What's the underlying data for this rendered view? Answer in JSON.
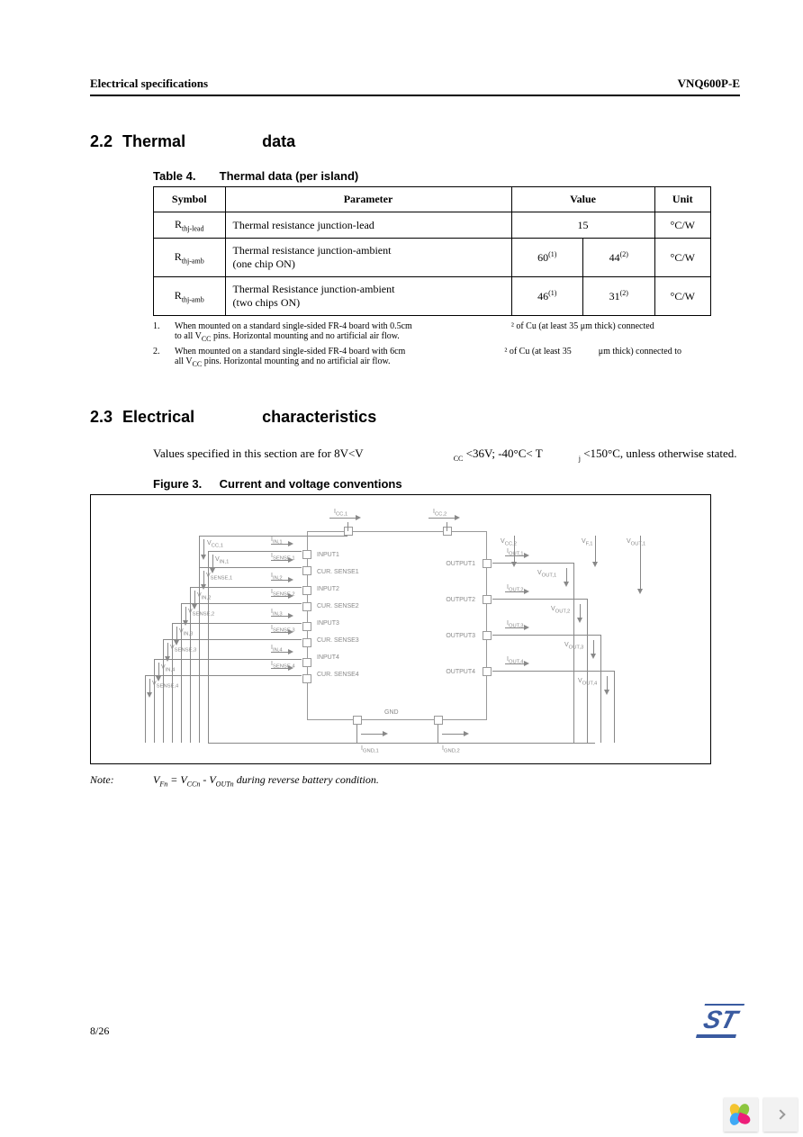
{
  "header": {
    "left": "Electrical specifications",
    "right": "VNQ600P-E"
  },
  "section22": {
    "num": "2.2",
    "title": "Thermal",
    "title2": "data"
  },
  "table4": {
    "caption_num": "Table 4.",
    "caption_title": "Thermal data (per island)",
    "head": {
      "symbol": "Symbol",
      "parameter": "Parameter",
      "value": "Value",
      "unit": "Unit"
    },
    "rows": [
      {
        "sym": "R",
        "sub": "thj-lead",
        "param": "Thermal resistance junction-lead",
        "v1": "15",
        "v2": "",
        "colspan": true,
        "unit": "°C/W"
      },
      {
        "sym": "R",
        "sub": "thj-amb",
        "param": "Thermal resistance junction-ambient",
        "param2": "(one chip ON)",
        "v1": "60",
        "s1": "(1)",
        "v2": "44",
        "s2": "(2)",
        "unit": "°C/W"
      },
      {
        "sym": "R",
        "sub": "thj-amb",
        "param": "Thermal Resistance junction-ambient",
        "param2": "(two chips ON)",
        "v1": "46",
        "s1": "(1)",
        "v2": "31",
        "s2": "(2)",
        "unit": "°C/W"
      }
    ],
    "footnotes": [
      {
        "n": "1.",
        "a": "When mounted on a standard single-sided FR-4 board with 0.5cm",
        "b": "² of Cu (at least 35 μm thick) connected",
        "c": "to all V",
        "d": "CC",
        "e": " pins. Horizontal mounting and no artificial air flow."
      },
      {
        "n": "2.",
        "a": "When mounted on a standard single-sided FR-4 board with 6cm",
        "b": "² of Cu (at least 35",
        "bb": "μm thick) connected to",
        "c": "all V",
        "d": "CC",
        "e": " pins. Horizontal mounting and no artificial air flow."
      }
    ]
  },
  "section23": {
    "num": "2.3",
    "title": "Electrical",
    "title2": "characteristics"
  },
  "body23": {
    "a": "Values specified in this section are for 8V<V",
    "b": "CC",
    "c": " <36V; -40°C< T",
    "d": "j",
    "e": " <150°C, unless otherwise stated."
  },
  "figure3": {
    "caption_num": "Figure 3.",
    "caption_title": "Current and voltage conventions"
  },
  "diagram": {
    "left_pins": [
      "INPUT1",
      "CUR. SENSE1",
      "INPUT2",
      "CUR. SENSE2",
      "INPUT3",
      "CUR. SENSE3",
      "INPUT4",
      "CUR. SENSE4"
    ],
    "right_pins": [
      "OUTPUT1",
      "OUTPUT2",
      "OUTPUT3",
      "OUTPUT4"
    ],
    "top_pins": [
      "",
      ""
    ],
    "gnd": "GND",
    "left_v": [
      "V",
      "V",
      "V",
      "V",
      "V",
      "V",
      "V",
      "V"
    ],
    "left_sub": [
      "CC,1",
      "IN,1",
      "SENSE,1",
      "IN,2",
      "SENSE,2",
      "IN,3",
      "SENSE,3",
      "IN,4",
      "SENSE,4"
    ],
    "left_i": [
      "I",
      "I",
      "I",
      "I",
      "I",
      "I",
      "I",
      "I"
    ],
    "right_v": [
      "V",
      "V",
      "V",
      "V",
      "V"
    ],
    "top_i": [
      "I",
      "I"
    ],
    "top_v": [
      "V",
      "V"
    ],
    "bot_i": [
      "I",
      "I"
    ]
  },
  "note": {
    "label": "Note:",
    "text_a": "V",
    "text_b": "Fn",
    "text_c": " = V",
    "text_d": "CCn",
    "text_e": " - V",
    "text_f": "OUTn",
    "text_g": "   during reverse battery condition."
  },
  "footer": {
    "page": "8/26"
  },
  "colors": {
    "st_blue": "#3a5ba0",
    "petals": [
      "#f4c430",
      "#8cc63f",
      "#3fa9f5",
      "#ed1e79"
    ]
  }
}
